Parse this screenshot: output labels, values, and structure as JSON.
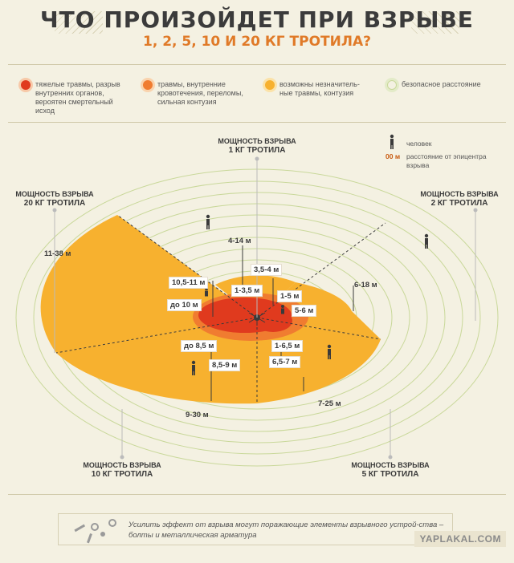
{
  "header": {
    "title": "ЧТО ПРОИЗОЙДЕТ ПРИ ВЗРЫВЕ",
    "subtitle": "1, 2, 5, 10 И 20 КГ ТРОТИЛА?"
  },
  "legend": [
    {
      "text": "тяжелые травмы, разрыв внутренних органов, вероятен смертельный исход",
      "color": "#e03a1e"
    },
    {
      "text": "травмы, внутренние кровотечения, переломы, сильная контузия",
      "color": "#f07c30"
    },
    {
      "text": "возможны незначитель-ные травмы, контузия",
      "color": "#f7b12f"
    },
    {
      "text": "безопасное расстояние",
      "color": "#c9d89a"
    }
  ],
  "key": {
    "person": "человек",
    "distance_sample": "00 м",
    "distance_text": "расстояние от эпицентра взрыва"
  },
  "charges": {
    "kg1": {
      "line1": "МОЩНОСТЬ ВЗРЫВА",
      "line2": "1 КГ ТРОТИЛА"
    },
    "kg2": {
      "line1": "МОЩНОСТЬ ВЗРЫВА",
      "line2": "2 КГ ТРОТИЛА"
    },
    "kg5": {
      "line1": "МОЩНОСТЬ ВЗРЫВА",
      "line2": "5 КГ ТРОТИЛА"
    },
    "kg10": {
      "line1": "МОЩНОСТЬ ВЗРЫВА",
      "line2": "10 КГ ТРОТИЛА"
    },
    "kg20": {
      "line1": "МОЩНОСТЬ ВЗРЫВА",
      "line2": "20 КГ ТРОТИЛА"
    }
  },
  "distances": {
    "d_4_14": "4-14 м",
    "d_11_38": "11-38 м",
    "d_3_5_4": "3,5-4 м",
    "d_10_5_11": "10,5-11 м",
    "d_1_3_5": "1-3,5 м",
    "d_1_5": "1-5 м",
    "d_6_18": "6-18 м",
    "d_do_10": "до 10 м",
    "d_5_6": "5-6 м",
    "d_do_8_5": "до 8,5 м",
    "d_1_6_5": "1-6,5 м",
    "d_8_5_9": "8,5-9 м",
    "d_6_5_7": "6,5-7 м",
    "d_7_25": "7-25 м",
    "d_9_30": "9-30 м"
  },
  "footer": {
    "text": "Усилить эффект от взрыва могут поражающие элементы взрывного устрой-ства – болты и металлическая арматура"
  },
  "watermark": "YAPLAKAL.COM"
}
